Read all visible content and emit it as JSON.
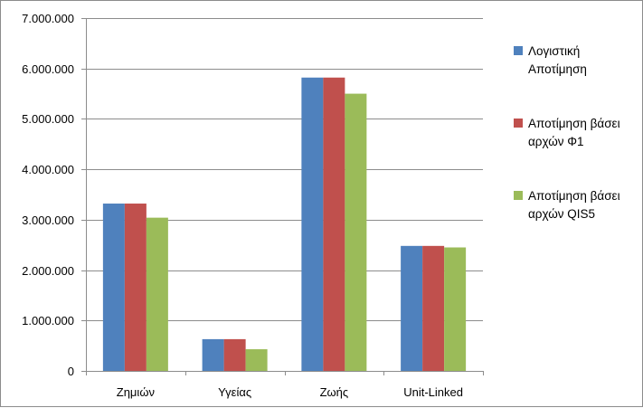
{
  "chart_data": {
    "type": "bar",
    "categories": [
      "Ζημιών",
      "Υγείας",
      "Ζωής",
      "Unit-Linked"
    ],
    "series": [
      {
        "name": "Λογιστική Αποτίμηση",
        "lines": [
          "Λογιστική",
          "Αποτίμηση"
        ],
        "color": "#4F81BD",
        "values": [
          3320000,
          630000,
          5820000,
          2480000
        ]
      },
      {
        "name": "Αποτίμηση βάσει αρχών Φ1",
        "lines": [
          "Αποτίμηση βάσει",
          "αρχών Φ1"
        ],
        "color": "#C0504D",
        "values": [
          3320000,
          630000,
          5820000,
          2480000
        ]
      },
      {
        "name": "Αποτίμηση βάσει αρχών QIS5",
        "lines": [
          "Αποτίμηση βάσει",
          "αρχών QIS5"
        ],
        "color": "#9BBB59",
        "values": [
          3040000,
          430000,
          5500000,
          2450000
        ]
      }
    ],
    "ylim": [
      0,
      7000000
    ],
    "yticks": [
      0,
      1000000,
      2000000,
      3000000,
      4000000,
      5000000,
      6000000,
      7000000
    ],
    "ytick_labels": [
      "0",
      "1.000.000",
      "2.000.000",
      "3.000.000",
      "4.000.000",
      "5.000.000",
      "6.000.000",
      "7.000.000"
    ],
    "grid": true,
    "legend_position": "right"
  }
}
